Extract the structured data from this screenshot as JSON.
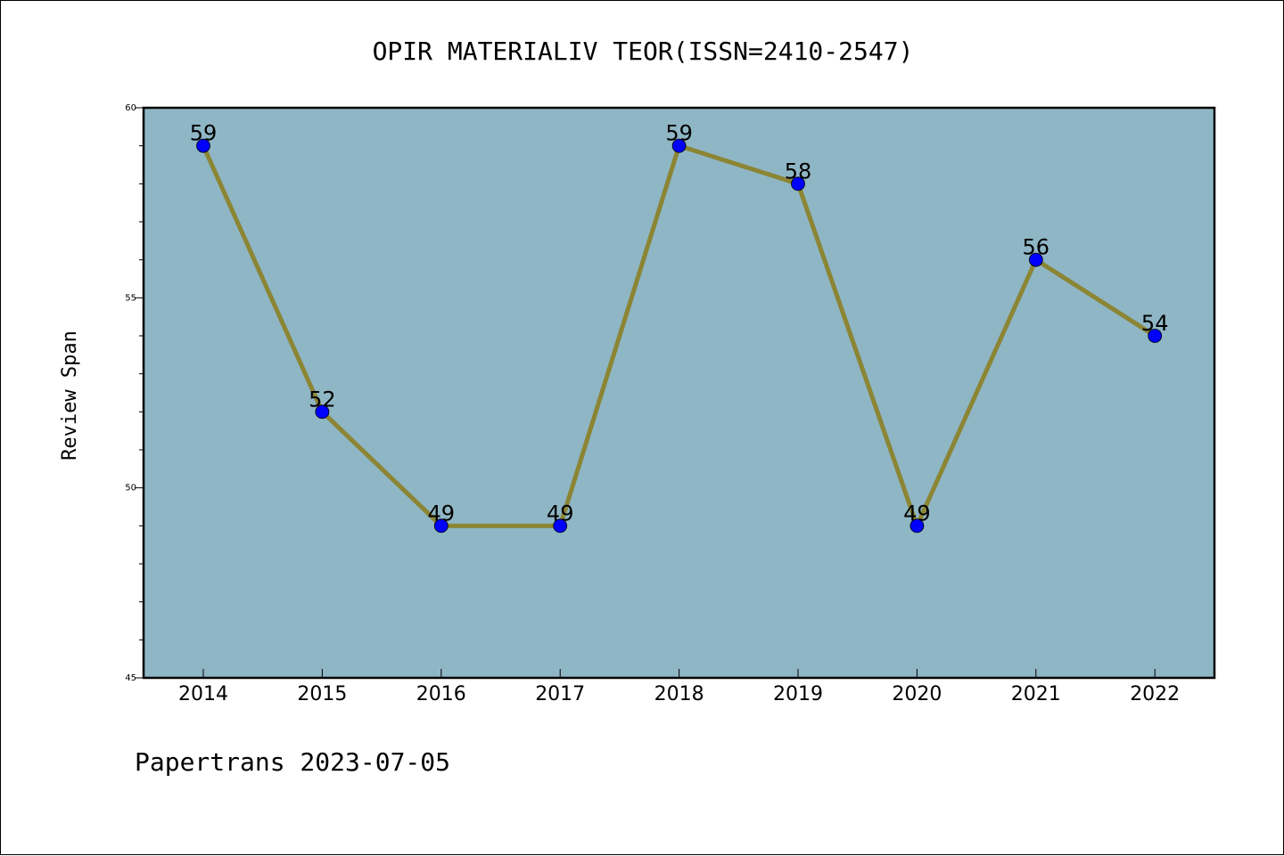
{
  "chart_data": {
    "type": "line",
    "title": "OPIR MATERIALIV TEOR(ISSN=2410-2547)",
    "ylabel": "Review Span",
    "xlabel": "",
    "categories": [
      "2014",
      "2015",
      "2016",
      "2017",
      "2018",
      "2019",
      "2020",
      "2021",
      "2022"
    ],
    "series": [
      {
        "values": [
          59,
          52,
          49,
          49,
          59,
          58,
          49,
          56,
          54
        ]
      }
    ],
    "data_labels": [
      "59",
      "52",
      "49",
      "49",
      "59",
      "58",
      "49",
      "56",
      "54"
    ],
    "ylim": [
      45,
      60
    ],
    "yticks": [
      "45",
      "50",
      "55",
      "60"
    ],
    "grid": false,
    "colors": {
      "plot_background": "#8fb6c5",
      "line": "#8b8534",
      "marker": "#0000ff"
    }
  },
  "footer": "Papertrans 2023-07-05"
}
